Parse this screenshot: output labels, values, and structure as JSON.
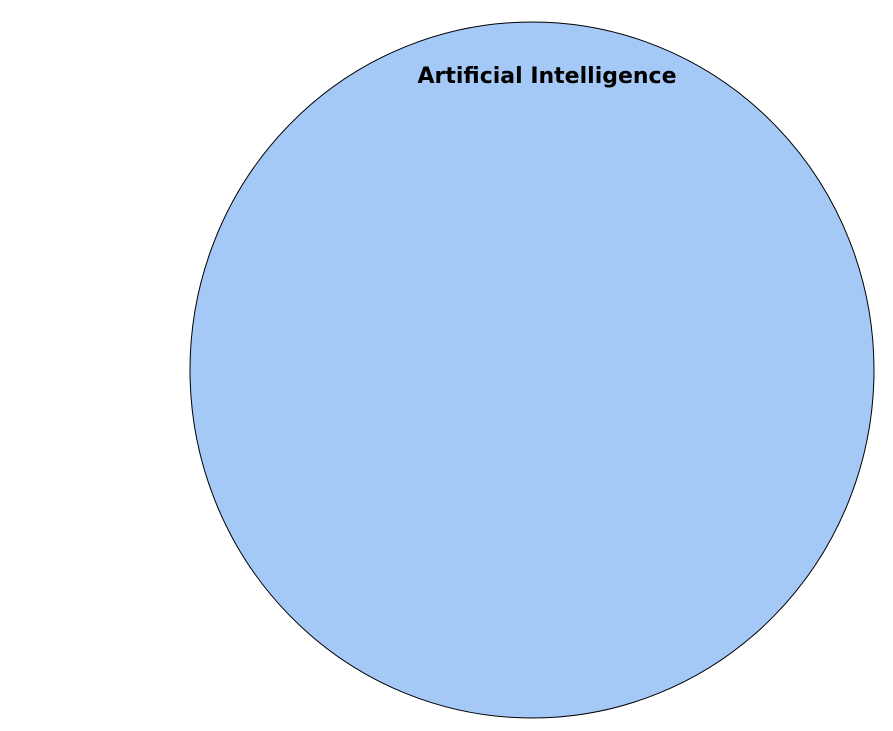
{
  "diagram": {
    "circle": {
      "label": "Artificial Intelligence",
      "fill_color": "#a4c9f7",
      "stroke_color": "#000000",
      "label_color": "#000000"
    }
  }
}
